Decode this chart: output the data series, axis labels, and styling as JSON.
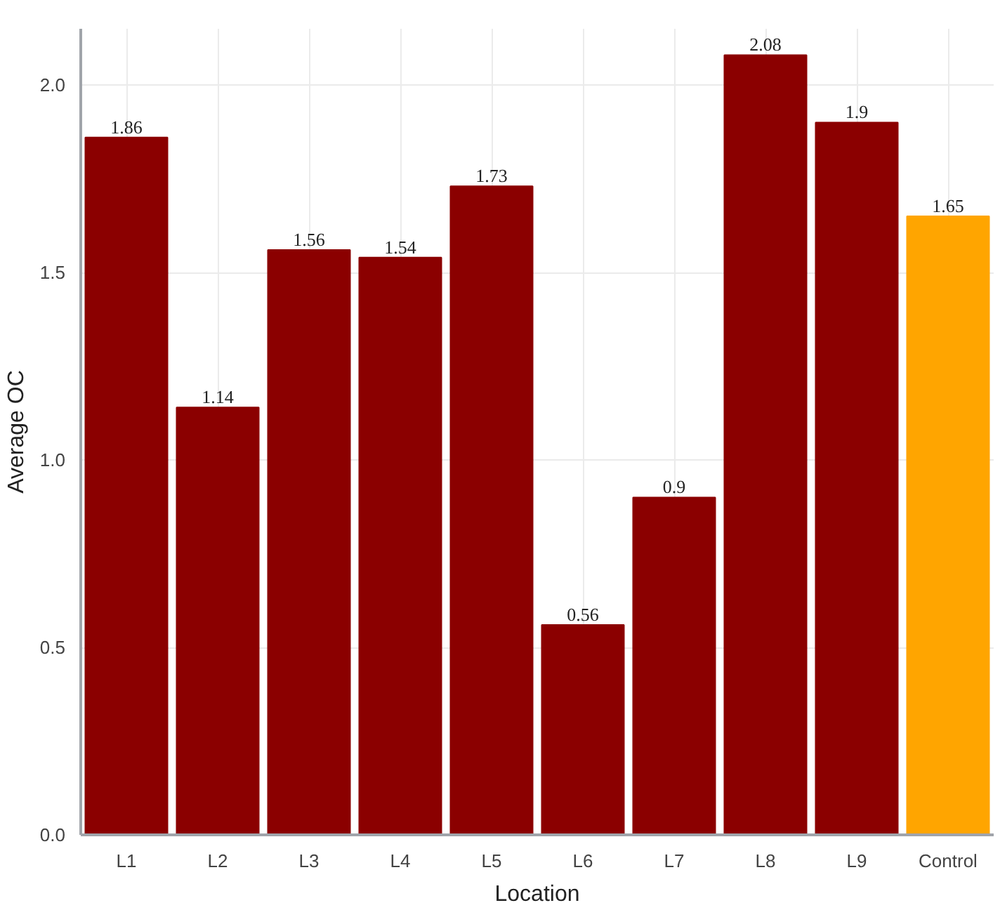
{
  "chart_data": {
    "type": "bar",
    "xlabel": "Location",
    "ylabel": "Average OC",
    "categories": [
      "L1",
      "L2",
      "L3",
      "L4",
      "L5",
      "L6",
      "L7",
      "L8",
      "L9",
      "Control"
    ],
    "values": [
      1.86,
      1.14,
      1.56,
      1.54,
      1.73,
      0.56,
      0.9,
      2.08,
      1.9,
      1.65
    ],
    "colors": [
      "#8b0000",
      "#8b0000",
      "#8b0000",
      "#8b0000",
      "#8b0000",
      "#8b0000",
      "#8b0000",
      "#8b0000",
      "#8b0000",
      "#ffa500"
    ],
    "ylim": [
      0,
      2.15
    ],
    "yticks": [
      {
        "value": 0,
        "label": "0.0"
      },
      {
        "value": 0.5,
        "label": "0.5"
      },
      {
        "value": 1.0,
        "label": "1.0"
      },
      {
        "value": 1.5,
        "label": "1.5"
      },
      {
        "value": 2.0,
        "label": "2.0"
      }
    ],
    "grid": true,
    "data_labels": true
  }
}
